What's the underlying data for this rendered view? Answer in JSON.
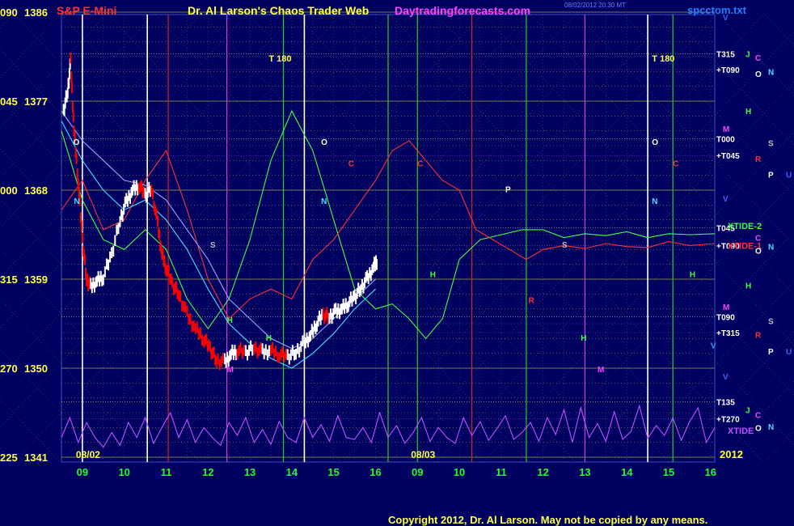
{
  "header": {
    "market": "S&P E-Mini",
    "title": "Dr. Al Larson's Chaos Trader Web",
    "site": "Daytradingforecasts.com",
    "timestamp": "08/02/2012 20:30 MT",
    "file": "spcctom.txt"
  },
  "footer": {
    "copyright": "Copyright 2012, Dr. Al Larson. May not be copied by any means."
  },
  "colors": {
    "background": "#000060",
    "price_up": "#ffffff",
    "price_down": "#ff0000",
    "xtide": "#c050ff",
    "grid_yellow": "#ffff40",
    "vline_green": "#20d020",
    "vline_red": "#d02020",
    "vline_magenta": "#d040d0"
  },
  "chart_data": {
    "type": "line",
    "y_axis_labels": [
      {
        "angle": "090",
        "price": "1386",
        "value": 1386
      },
      {
        "angle": "045",
        "price": "1377",
        "value": 1377
      },
      {
        "angle": "000",
        "price": "1368",
        "value": 1368
      },
      {
        "angle": "315",
        "price": "1359",
        "value": 1359
      },
      {
        "angle": "270",
        "price": "1350",
        "value": 1350
      },
      {
        "angle": "225",
        "price": "1341",
        "value": 1341
      }
    ],
    "ylim": [
      1341,
      1386
    ],
    "x_ticks": [
      "09",
      "10",
      "11",
      "12",
      "13",
      "14",
      "15",
      "16",
      "09",
      "10",
      "11",
      "12",
      "13",
      "14",
      "15",
      "16"
    ],
    "x_range": [
      8.5,
      24.1
    ],
    "date_labels": [
      {
        "text": "08/02",
        "x": 9.0
      },
      {
        "text": "08/03",
        "x": 17.0
      }
    ],
    "year_label": "2012",
    "time_labels": [
      {
        "text": "T 180",
        "x": 13.45,
        "y": 1381
      },
      {
        "text": "T 180",
        "x": 22.6,
        "y": 1381
      }
    ],
    "right_labels": [
      {
        "text": "T315",
        "y": 1381.8
      },
      {
        "text": "+T090",
        "y": 1380.2
      },
      {
        "text": "T000",
        "y": 1373.2
      },
      {
        "text": "+T045",
        "y": 1371.5
      },
      {
        "text": "T045",
        "y": 1364.2
      },
      {
        "text": "+T090",
        "y": 1362.4
      },
      {
        "text": "T090",
        "y": 1355.2
      },
      {
        "text": "+T315",
        "y": 1353.6
      },
      {
        "text": "T135",
        "y": 1346.6
      },
      {
        "text": "+T270",
        "y": 1344.9
      }
    ],
    "flow_labels": [
      {
        "text": "XTIDE-2",
        "y": 1364.4
      },
      {
        "text": "XTIDE-1",
        "y": 1362.4
      },
      {
        "text": "XTIDE",
        "y": 1343.7
      }
    ],
    "planet_labels": [
      {
        "text": "V",
        "col": 0,
        "y": 1385.5
      },
      {
        "text": "J",
        "col": 1,
        "y": 1381.8
      },
      {
        "text": "C",
        "col": 2,
        "y": 1381.4
      },
      {
        "text": "O",
        "col": 2,
        "y": 1379.8
      },
      {
        "text": "N",
        "col": 3,
        "y": 1380
      },
      {
        "text": "H",
        "col": 1,
        "y": 1376
      },
      {
        "text": "M",
        "col": 0,
        "y": 1374.2
      },
      {
        "text": "S",
        "col": 3,
        "y": 1372.8
      },
      {
        "text": "R",
        "col": 2,
        "y": 1371.2
      },
      {
        "text": "P",
        "col": 3,
        "y": 1369.6
      },
      {
        "text": "U",
        "col": 4,
        "y": 1369.6
      },
      {
        "text": "V",
        "col": 0,
        "y": 1367.2
      },
      {
        "text": "C",
        "col": 2,
        "y": 1363.2
      },
      {
        "text": "O",
        "col": 2,
        "y": 1361.9
      },
      {
        "text": "N",
        "col": 3,
        "y": 1362.3
      },
      {
        "text": "H",
        "col": 1,
        "y": 1358.4
      },
      {
        "text": "M",
        "col": 0,
        "y": 1356.2
      },
      {
        "text": "S",
        "col": 3,
        "y": 1354.8
      },
      {
        "text": "R",
        "col": 2,
        "y": 1353.4
      },
      {
        "text": "P",
        "col": 3,
        "y": 1351.7
      },
      {
        "text": "U",
        "col": 4,
        "y": 1351.7
      },
      {
        "text": "V",
        "col": 0,
        "y": 1349.2
      },
      {
        "text": "J",
        "col": 1,
        "y": 1345.8
      },
      {
        "text": "C",
        "col": 2,
        "y": 1345.3
      },
      {
        "text": "O",
        "col": 2,
        "y": 1344.0
      },
      {
        "text": "N",
        "col": 3,
        "y": 1344.1
      }
    ],
    "inchart_markers": [
      {
        "text": "O",
        "x": 8.78,
        "y": 1372.6,
        "color": "#ffffff"
      },
      {
        "text": "O",
        "x": 14.7,
        "y": 1372.6,
        "color": "#ffffff"
      },
      {
        "text": "O",
        "x": 22.6,
        "y": 1372.6,
        "color": "#ffffff"
      },
      {
        "text": "N",
        "x": 8.8,
        "y": 1366.6,
        "color": "#40e0ff"
      },
      {
        "text": "N",
        "x": 14.7,
        "y": 1366.6,
        "color": "#40e0ff"
      },
      {
        "text": "N",
        "x": 22.6,
        "y": 1366.6,
        "color": "#40e0ff"
      },
      {
        "text": "P",
        "x": 19.1,
        "y": 1367.8,
        "color": "#ffffff"
      },
      {
        "text": "C",
        "x": 15.35,
        "y": 1370.4,
        "color": "#ff3030"
      },
      {
        "text": "C",
        "x": 17.0,
        "y": 1370.4,
        "color": "#ff3030"
      },
      {
        "text": "C",
        "x": 23.1,
        "y": 1370.4,
        "color": "#ff3030"
      },
      {
        "text": "S",
        "x": 12.05,
        "y": 1362.2,
        "color": "#c0c0c0"
      },
      {
        "text": "S",
        "x": 20.45,
        "y": 1362.2,
        "color": "#c0c0c0"
      },
      {
        "text": "H",
        "x": 12.45,
        "y": 1354.6,
        "color": "#40ff40"
      },
      {
        "text": "H",
        "x": 13.38,
        "y": 1352.8,
        "color": "#40ff40"
      },
      {
        "text": "H",
        "x": 17.3,
        "y": 1359.2,
        "color": "#40ff40"
      },
      {
        "text": "H",
        "x": 20.9,
        "y": 1352.8,
        "color": "#40ff40"
      },
      {
        "text": "H",
        "x": 23.5,
        "y": 1359.2,
        "color": "#40ff40"
      },
      {
        "text": "M",
        "x": 12.45,
        "y": 1349.6,
        "color": "#ff40ff"
      },
      {
        "text": "M",
        "x": 21.3,
        "y": 1349.6,
        "color": "#ff40ff"
      },
      {
        "text": "R",
        "x": 19.65,
        "y": 1356.6,
        "color": "#ff3030"
      },
      {
        "text": "V",
        "x": 24.0,
        "y": 1352.0,
        "color": "#40a0ff"
      }
    ],
    "series": [
      {
        "color": "#ffffff",
        "x": [
          8.55,
          8.65,
          8.72,
          8.8,
          8.9,
          9.0,
          9.1,
          9.2,
          9.35,
          9.5,
          9.7,
          9.9,
          10.05,
          10.2,
          10.35,
          10.5,
          10.65,
          10.8,
          10.9,
          11.0,
          11.15,
          11.3,
          11.5,
          11.7,
          11.9,
          12.05,
          12.2,
          12.4,
          12.55,
          12.7,
          12.9,
          13.1,
          13.3,
          13.5,
          13.7,
          13.9,
          14.1,
          14.3,
          14.45,
          14.6,
          14.75,
          14.9,
          15.05,
          15.2,
          15.35,
          15.5,
          15.65,
          15.8,
          15.95,
          16.05
        ],
        "y": [
          1376,
          1378,
          1381,
          1374,
          1369,
          1363,
          1359,
          1358.2,
          1358.8,
          1359.3,
          1361.5,
          1365,
          1366.8,
          1368,
          1368.5,
          1367.5,
          1368.2,
          1364.5,
          1361.5,
          1360.2,
          1358.5,
          1357.5,
          1355.4,
          1354.0,
          1353.0,
          1352.0,
          1350.8,
          1350.6,
          1351.4,
          1351.8,
          1351.6,
          1352.1,
          1351.6,
          1351.8,
          1351.4,
          1351.2,
          1351.6,
          1352.6,
          1353.3,
          1354.6,
          1355.4,
          1355.2,
          1355.7,
          1356.0,
          1356.6,
          1357.2,
          1358.1,
          1359.0,
          1360.2,
          1361.0
        ]
      },
      {
        "color": "#40ff40",
        "x": [
          8.5,
          9.0,
          9.5,
          10.0,
          10.5,
          11.0,
          11.5,
          12.0,
          12.5,
          13.0,
          13.5,
          14.0,
          14.5,
          15.0,
          15.5,
          16.0,
          16.4,
          16.8,
          17.2,
          17.6,
          18.0,
          18.5,
          19.0,
          19.5,
          20.0,
          20.5,
          21.0,
          21.5,
          22.0,
          22.5,
          23.0,
          23.5,
          24.1
        ],
        "y": [
          1374,
          1367,
          1363,
          1362,
          1364,
          1362,
          1357,
          1354,
          1357,
          1363,
          1371,
          1376,
          1372,
          1365,
          1358,
          1356,
          1356.5,
          1355,
          1353,
          1355,
          1361,
          1363,
          1363.5,
          1364,
          1364,
          1363.2,
          1363.6,
          1363.4,
          1363.8,
          1363.2,
          1363.6,
          1363.5,
          1363.6
        ]
      },
      {
        "color": "#ff3030",
        "x": [
          8.5,
          9.0,
          9.5,
          10.0,
          10.5,
          11.0,
          11.5,
          12.0,
          12.5,
          13.0,
          13.5,
          14.0,
          14.5,
          15.0,
          15.5,
          16.0,
          16.4,
          16.8,
          17.2,
          17.6,
          18.0,
          18.4,
          18.8,
          19.2,
          19.6,
          20.0,
          20.5,
          21.0,
          21.5,
          22.0,
          22.5,
          23.0,
          23.5,
          24.1
        ],
        "y": [
          1366,
          1369,
          1364,
          1365,
          1369,
          1372,
          1366,
          1359,
          1355,
          1357,
          1358,
          1357,
          1361,
          1363,
          1366,
          1369,
          1372,
          1373,
          1371,
          1369,
          1368,
          1364,
          1363,
          1362,
          1361,
          1362,
          1362.4,
          1362.1,
          1362.6,
          1362.3,
          1362.2,
          1362.8,
          1362.4,
          1362.6
        ]
      },
      {
        "color": "#40e0ff",
        "x": [
          8.5,
          9.0,
          9.5,
          10.0,
          10.5,
          11.0,
          11.5,
          12.0,
          12.5,
          13.0,
          13.5,
          14.0,
          14.5,
          15.0,
          15.5,
          16.0
        ],
        "y": [
          1375,
          1371,
          1368,
          1366,
          1367,
          1365,
          1362,
          1358,
          1354.5,
          1352.5,
          1351,
          1350,
          1351.5,
          1353.5,
          1356,
          1358
        ]
      },
      {
        "color": "#a0a0ff",
        "x": [
          8.5,
          9.0,
          9.5,
          10.0,
          10.5,
          11.0,
          11.5,
          12.0,
          12.5,
          13.0,
          13.5,
          14.0,
          14.5,
          15.0,
          15.5,
          16.0
        ],
        "y": [
          1376,
          1373,
          1371,
          1369,
          1368.5,
          1367,
          1364,
          1361,
          1357,
          1355,
          1353,
          1352,
          1353,
          1355,
          1357,
          1359
        ]
      },
      {
        "color": "#c050ff",
        "name": "XTIDE",
        "x": [
          8.5,
          8.7,
          8.9,
          9.1,
          9.3,
          9.5,
          9.7,
          9.9,
          10.1,
          10.3,
          10.5,
          10.7,
          10.9,
          11.1,
          11.3,
          11.5,
          11.7,
          11.9,
          12.1,
          12.3,
          12.5,
          12.7,
          12.9,
          13.1,
          13.3,
          13.5,
          13.7,
          13.9,
          14.1,
          14.3,
          14.5,
          14.7,
          14.9,
          15.1,
          15.3,
          15.5,
          15.7,
          15.9,
          16.1,
          16.3,
          16.5,
          16.7,
          16.9,
          17.1,
          17.3,
          17.5,
          17.7,
          17.9,
          18.1,
          18.3,
          18.5,
          18.7,
          18.9,
          19.1,
          19.3,
          19.5,
          19.7,
          19.9,
          20.1,
          20.3,
          20.5,
          20.7,
          20.9,
          21.1,
          21.3,
          21.5,
          21.7,
          21.9,
          22.1,
          22.3,
          22.5,
          22.7,
          22.9,
          23.1,
          23.3,
          23.5,
          23.7,
          23.9,
          24.1
        ],
        "y": [
          1343,
          1345,
          1342.5,
          1344.5,
          1343,
          1342,
          1343.5,
          1342.2,
          1344.5,
          1343,
          1345,
          1342.4,
          1344,
          1345.5,
          1343,
          1344.8,
          1342.5,
          1344,
          1343,
          1342.2,
          1344.5,
          1343.2,
          1345,
          1342.5,
          1343.8,
          1342.3,
          1344.6,
          1343,
          1342.5,
          1345,
          1343,
          1344.3,
          1342.6,
          1345.2,
          1343,
          1342.8,
          1344,
          1342.5,
          1345.5,
          1343,
          1344.2,
          1342.4,
          1343.5,
          1345,
          1342.6,
          1344,
          1343,
          1342.4,
          1345,
          1343.2,
          1344.6,
          1342.7,
          1343.9,
          1345.2,
          1342.8,
          1343.5,
          1344.5,
          1342.6,
          1345,
          1343.3,
          1345.8,
          1342.5,
          1346,
          1343,
          1344.4,
          1342.6,
          1345.6,
          1342.8,
          1343.6,
          1346.2,
          1342.9,
          1344.2,
          1343.2,
          1345,
          1342.7,
          1344.6,
          1346,
          1342.5,
          1344
        ]
      }
    ],
    "vertical_lines": [
      {
        "x": 9.0,
        "kind": "white"
      },
      {
        "x": 10.55,
        "kind": "white"
      },
      {
        "x": 11.05,
        "kind": "red"
      },
      {
        "x": 12.45,
        "kind": "magenta"
      },
      {
        "x": 13.8,
        "kind": "green"
      },
      {
        "x": 14.3,
        "kind": "white"
      },
      {
        "x": 16.3,
        "kind": "green"
      },
      {
        "x": 17.0,
        "kind": "green"
      },
      {
        "x": 18.3,
        "kind": "red"
      },
      {
        "x": 19.6,
        "kind": "green"
      },
      {
        "x": 21.0,
        "kind": "magenta"
      },
      {
        "x": 22.5,
        "kind": "white"
      },
      {
        "x": 23.1,
        "kind": "green"
      }
    ]
  }
}
